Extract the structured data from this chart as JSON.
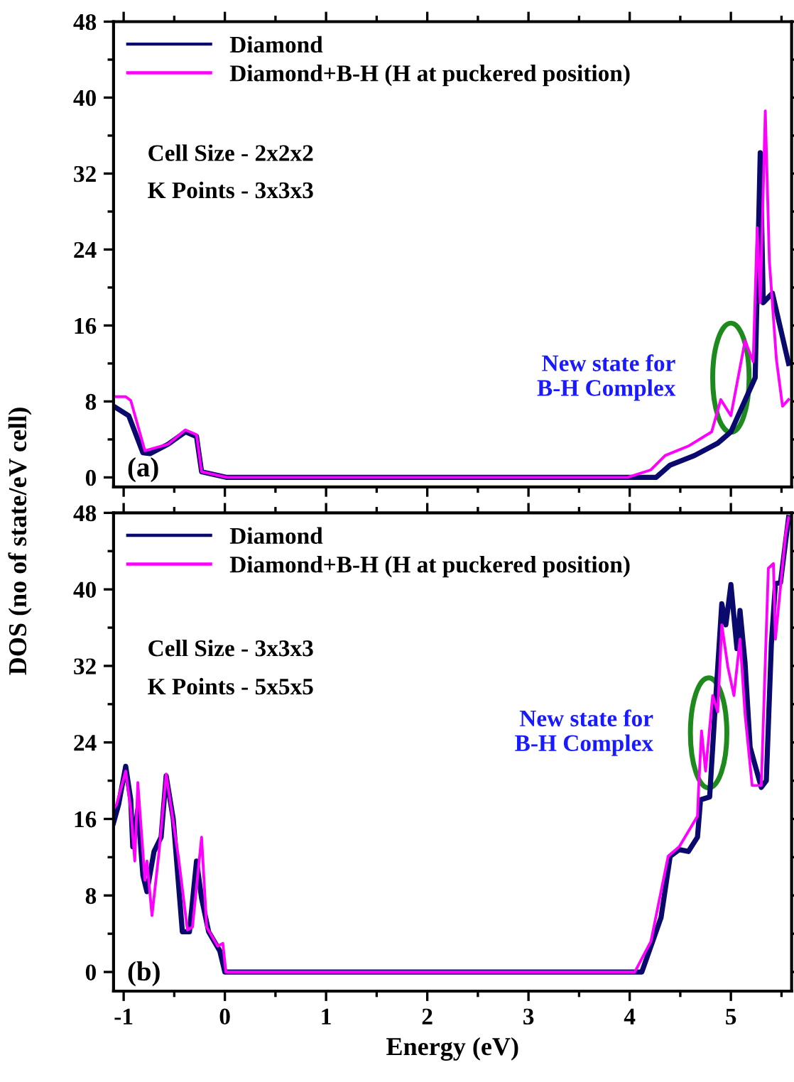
{
  "chart_data": [
    {
      "type": "line",
      "ylabel": "DOS (no of state/eV cell)",
      "xlim": [
        -1.1,
        5.6
      ],
      "ylim": [
        -1,
        48
      ],
      "xticks": [
        -1,
        0,
        1,
        2,
        3,
        4,
        5
      ],
      "yticks": [
        0,
        8,
        16,
        24,
        32,
        40,
        48
      ],
      "tick_labels": "y",
      "grid": false,
      "legend": "top left",
      "line_style": "solid",
      "marker": "none",
      "annotations": [
        "Cell Size - 2x2x2",
        "K Points - 3x3x3",
        "(a)",
        {
          "text": "New state for\nB-H Complex",
          "x": 5.0,
          "y": 10.5
        }
      ],
      "series": [
        {
          "name": "Diamond",
          "color": "#0a0a6e",
          "x": [
            -1.1,
            -0.95,
            -0.81,
            -0.74,
            -0.56,
            -0.39,
            -0.28,
            -0.23,
            0.02,
            3.98,
            4.26,
            4.4,
            4.64,
            4.87,
            5.0,
            5.24,
            5.29,
            5.32,
            5.41,
            5.57
          ],
          "values": [
            7.5,
            6.5,
            2.6,
            2.5,
            3.5,
            4.8,
            4.3,
            0.6,
            0,
            0,
            0,
            1.3,
            2.3,
            3.6,
            4.8,
            10.5,
            34.2,
            18.4,
            19.4,
            12
          ]
        },
        {
          "name": "Diamond+B-H (H at puckered position)",
          "color": "#ff00ff",
          "x": [
            -1.1,
            -0.98,
            -0.93,
            -0.79,
            -0.56,
            -0.39,
            -0.28,
            -0.23,
            0.02,
            3.98,
            4.21,
            4.35,
            4.58,
            4.81,
            4.9,
            5.0,
            5.14,
            5.22,
            5.26,
            5.29,
            5.34,
            5.38,
            5.45,
            5.51,
            5.57
          ],
          "values": [
            8.5,
            8.5,
            8.1,
            2.8,
            3.5,
            5.0,
            4.5,
            0.6,
            0,
            0,
            0.8,
            2.3,
            3.3,
            4.8,
            8.2,
            6.5,
            14.4,
            12.2,
            26.3,
            18.4,
            38.6,
            22.8,
            12.4,
            7.5,
            8.2
          ]
        }
      ]
    },
    {
      "type": "line",
      "xlabel": "Energy (eV)",
      "xlim": [
        -1.1,
        5.6
      ],
      "ylim": [
        -2,
        48
      ],
      "xticks": [
        -1,
        0,
        1,
        2,
        3,
        4,
        5
      ],
      "yticks": [
        0,
        8,
        16,
        24,
        32,
        40,
        48
      ],
      "grid": false,
      "legend": "top left",
      "line_style": "solid",
      "marker": "none",
      "annotations": [
        "Cell Size - 3x3x3",
        "K Points - 5x5x5",
        "(b)",
        {
          "text": "New state for\nB-H Complex",
          "x": 4.78,
          "y": 25
        }
      ],
      "series": [
        {
          "name": "Diamond",
          "color": "#0a0a6e",
          "x": [
            -1.1,
            -1.05,
            -0.98,
            -0.93,
            -0.91,
            -0.86,
            -0.81,
            -0.77,
            -0.7,
            -0.63,
            -0.58,
            -0.51,
            -0.42,
            -0.35,
            -0.28,
            -0.23,
            -0.16,
            -0.05,
            0,
            4.12,
            4.31,
            4.4,
            4.49,
            4.58,
            4.67,
            4.7,
            4.79,
            4.84,
            4.91,
            4.95,
            5.0,
            5.06,
            5.09,
            5.14,
            5.19,
            5.3,
            5.35,
            5.4,
            5.44,
            5.49,
            5.57
          ],
          "values": [
            15.6,
            17.5,
            21.5,
            18,
            13.1,
            17,
            10.1,
            8.4,
            12.6,
            14.1,
            20.5,
            16,
            4.2,
            4.2,
            11.6,
            7.7,
            4.2,
            2.2,
            0,
            0,
            5.7,
            12.1,
            12.8,
            12.6,
            14.1,
            18,
            18.3,
            26.9,
            38.5,
            36.3,
            40.5,
            33.8,
            37.8,
            32.3,
            23.5,
            19.3,
            20,
            34.3,
            40.6,
            40.7,
            47.5
          ]
        },
        {
          "name": "Diamond+B-H (H at puckered position)",
          "color": "#ff00ff",
          "x": [
            -1.1,
            -1.07,
            -0.98,
            -0.93,
            -0.89,
            -0.86,
            -0.79,
            -0.77,
            -0.72,
            -0.65,
            -0.58,
            -0.46,
            -0.37,
            -0.32,
            -0.23,
            -0.18,
            -0.07,
            -0.02,
            0.01,
            4.05,
            4.21,
            4.38,
            4.49,
            4.67,
            4.68,
            4.71,
            4.75,
            4.82,
            4.87,
            4.91,
            4.97,
            5.03,
            5.09,
            5.14,
            5.21,
            5.3,
            5.37,
            5.42,
            5.44,
            5.54,
            5.57
          ],
          "values": [
            17,
            17.5,
            21,
            17,
            11.6,
            19.8,
            9.6,
            11.6,
            5.9,
            12.6,
            20.7,
            12.1,
            4.4,
            4.7,
            14.1,
            4.7,
            2.7,
            3,
            0,
            0,
            3.2,
            12.1,
            13.1,
            16.3,
            19,
            25.2,
            21,
            28.9,
            27.2,
            36.3,
            31.9,
            28.9,
            34.8,
            26.9,
            19.5,
            19.5,
            42.2,
            42.7,
            34.8,
            45.7,
            47.5
          ]
        }
      ]
    }
  ]
}
